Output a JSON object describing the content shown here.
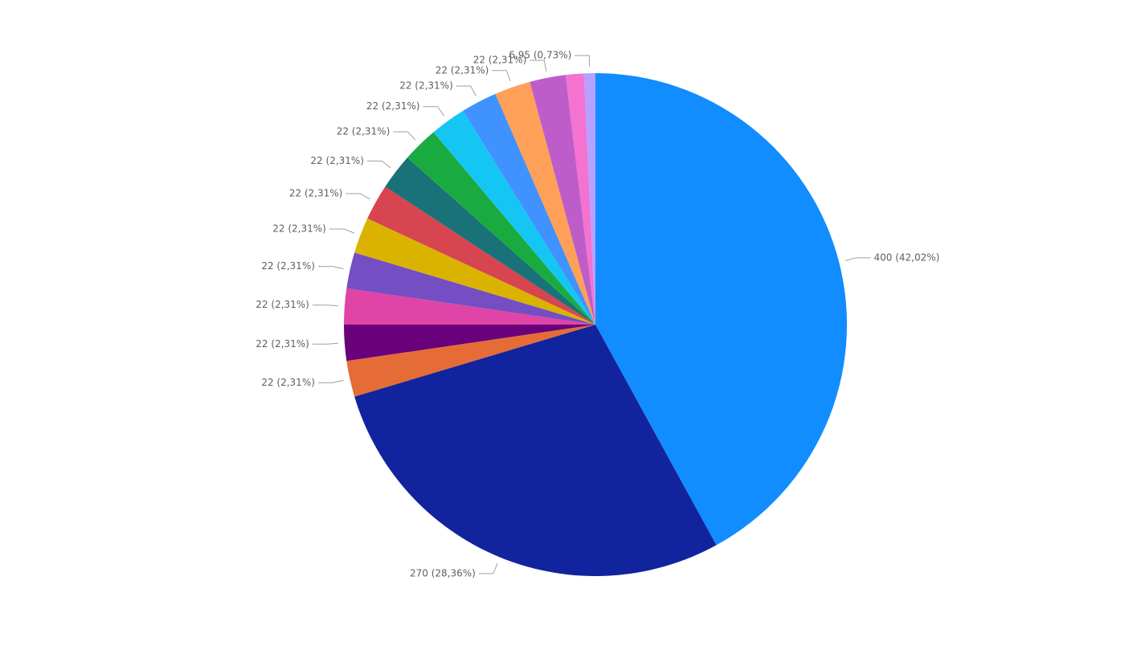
{
  "chart_data": {
    "type": "pie",
    "values": [
      400,
      270,
      22,
      22,
      22,
      22,
      22,
      22,
      22,
      22,
      22,
      22,
      22,
      22,
      11.05,
      6.95
    ],
    "value_labels": [
      "400 (42,02%)",
      "270 (28,36%)",
      "22 (2,31%)",
      "22 (2,31%)",
      "22 (2,31%)",
      "22 (2,31%)",
      "22 (2,31%)",
      "22 (2,31%)",
      "22 (2,31%)",
      "22 (2,31%)",
      "22 (2,31%)",
      "22 (2,31%)",
      "22 (2,31%)",
      "22 (2,31%)",
      null,
      "6,95 (0,73%)"
    ],
    "colors": [
      "#118DFF",
      "#12239E",
      "#E66C37",
      "#6B007B",
      "#E044A7",
      "#744EC2",
      "#D9B300",
      "#D64550",
      "#197278",
      "#1AAB40",
      "#15C6F4",
      "#4092FF",
      "#FFA058",
      "#BE5DC9",
      "#F472D0",
      "#B5A1FF"
    ]
  }
}
